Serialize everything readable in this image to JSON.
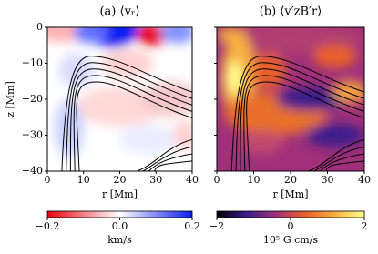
{
  "chart_data": [
    {
      "type": "heatmap",
      "title": "(a) ⟨vᵣ⟩",
      "xlabel": "r [Mm]",
      "ylabel": "z [Mm]",
      "xlim": [
        0,
        40
      ],
      "ylim": [
        -40,
        0
      ],
      "xticks": [
        0,
        10,
        20,
        30,
        40
      ],
      "yticks": [
        0,
        {
          "value": -10,
          "label": "−10"
        },
        {
          "value": -20,
          "label": "−20"
        },
        {
          "value": -30,
          "label": "−30"
        },
        {
          "value": -40,
          "label": "−40"
        }
      ],
      "show_yticklabels": true,
      "colorbar": {
        "label": "km/s",
        "lim": [
          -0.2,
          0.2
        ],
        "ticks": [
          {
            "value": -0.2,
            "label": "−0.2"
          },
          {
            "value": 0,
            "label": "0.0"
          },
          {
            "value": 0.2,
            "label": "0.2"
          }
        ],
        "colormap": [
          "#e8000b",
          "#ffffff",
          "#0a1cf0"
        ]
      }
    },
    {
      "type": "heatmap",
      "title": "(b) ⟨v′zB′r⟩",
      "xlabel": "r [Mm]",
      "xlim": [
        0,
        40
      ],
      "ylim": [
        -40,
        0
      ],
      "xticks": [
        0,
        10,
        20,
        30,
        40
      ],
      "yticks": [
        0,
        -10,
        -20,
        -30,
        -40
      ],
      "show_yticklabels": false,
      "colorbar": {
        "label": "10⁵ G cm/s",
        "lim": [
          -2,
          2
        ],
        "ticks": [
          {
            "value": -2,
            "label": "−2"
          },
          0,
          2
        ],
        "colormap": [
          "#000000",
          "#3a1a8c",
          "#a0307a",
          "#e8602a",
          "#f8b040",
          "#ffff90"
        ]
      }
    }
  ]
}
